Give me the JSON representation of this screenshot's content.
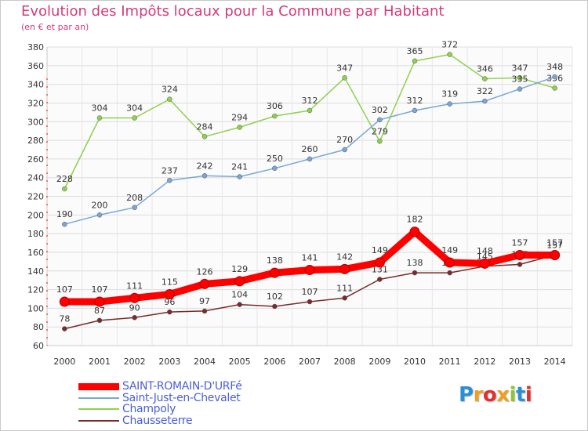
{
  "chart_data": {
    "type": "line",
    "title": "Evolution des Impôts locaux pour la Commune par Habitant",
    "subtitle": "(en € et par an)",
    "xlabel": "",
    "ylabel": "",
    "ylim": [
      60,
      380
    ],
    "y_ticks": [
      60,
      80,
      100,
      120,
      140,
      160,
      180,
      200,
      220,
      240,
      260,
      280,
      300,
      320,
      340,
      360,
      380
    ],
    "categories": [
      "2000",
      "2001",
      "2002",
      "2003",
      "2004",
      "2005",
      "2006",
      "2007",
      "2008",
      "2009",
      "2010",
      "2011",
      "2012",
      "2013",
      "2014"
    ],
    "series": [
      {
        "name": "Champoly",
        "color": "#8fd14f",
        "values": [
          228,
          304,
          304,
          324,
          284,
          294,
          306,
          312,
          347,
          279,
          365,
          372,
          346,
          347,
          336
        ]
      },
      {
        "name": "Saint-Just-en-Chevalet",
        "color": "#7aa6d6",
        "values": [
          190,
          200,
          208,
          237,
          242,
          241,
          250,
          260,
          270,
          302,
          312,
          319,
          322,
          335,
          348
        ]
      },
      {
        "name": "Chausseterre",
        "color": "#7a2a2a",
        "values": [
          78,
          87,
          90,
          96,
          97,
          104,
          102,
          107,
          111,
          131,
          138,
          138,
          145,
          147,
          157
        ]
      },
      {
        "name": "SAINT-ROMAIN-D'URFé",
        "color": "#ff0000",
        "values": [
          107,
          107,
          111,
          115,
          126,
          129,
          138,
          141,
          142,
          149,
          182,
          149,
          148,
          157,
          157
        ]
      }
    ],
    "legend": [
      {
        "name": "SAINT-ROMAIN-D'URFé",
        "color": "#ff0000"
      },
      {
        "name": "Saint-Just-en-Chevalet",
        "color": "#7aa6d6"
      },
      {
        "name": "Champoly",
        "color": "#8fd14f"
      },
      {
        "name": "Chausseterre",
        "color": "#7a2a2a"
      }
    ],
    "legend_position": "bottom-left",
    "grid": true
  },
  "logo": {
    "letters": [
      "P",
      "r",
      "o",
      "x",
      "i",
      "t",
      "i"
    ],
    "colors": [
      "#2a8fd6",
      "#f0a020",
      "#e03030",
      "#f0a020",
      "#8fc43a",
      "#2a8fd6",
      "#e03030"
    ]
  }
}
